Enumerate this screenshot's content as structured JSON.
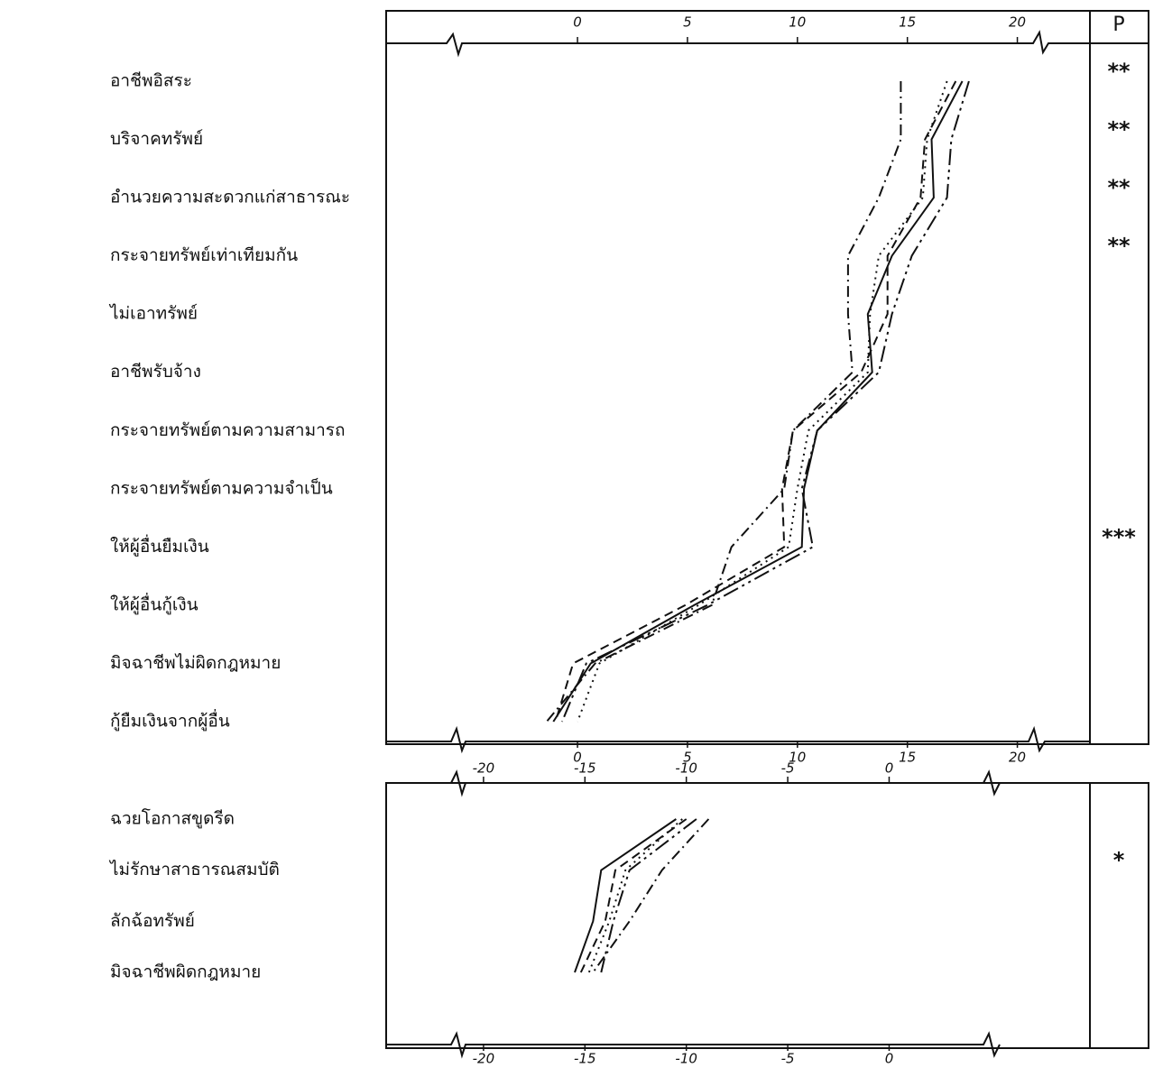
{
  "chart_data": [
    {
      "type": "line",
      "orientation": "horizontal",
      "p_header": "P",
      "categories": [
        "อาชีพอิสระ",
        "บริจาคทรัพย์",
        "อำนวยความสะดวกแก่สาธารณะ",
        "กระจายทรัพย์เท่าเทียมกัน",
        "ไม่เอาทรัพย์",
        "อาชีพรับจ้าง",
        "กระจายทรัพย์ตามความสามารถ",
        "กระจายทรัพย์ตามความจำเป็น",
        "ให้ผู้อื่นยืมเงิน",
        "ให้ผู้อื่นกู้เงิน",
        "มิจฉาชีพไม่ผิดกฎหมาย",
        "กู้ยืมเงินจากผู้อื่น"
      ],
      "significance": [
        "**",
        "**",
        "**",
        "**",
        null,
        null,
        null,
        null,
        "***",
        null,
        null,
        null
      ],
      "series": [
        {
          "color": "#111111",
          "dash": "solid",
          "values": [
            17.5,
            16.1,
            16.2,
            14.3,
            13.2,
            13.4,
            10.9,
            10.3,
            10.2,
            5.3,
            0.6,
            -1.1
          ]
        },
        {
          "color": "#111111",
          "dash": "dashdot",
          "values": [
            14.7,
            14.7,
            13.7,
            12.3,
            12.3,
            12.5,
            9.8,
            9.4,
            7.0,
            6.1,
            0.8,
            -1.4
          ]
        },
        {
          "color": "#111111",
          "dash": "dashed",
          "values": [
            17.2,
            15.8,
            15.6,
            14.1,
            14.1,
            12.9,
            9.8,
            9.3,
            9.4,
            4.9,
            -0.2,
            -1.0
          ]
        },
        {
          "color": "#111111",
          "dash": "dotted",
          "values": [
            16.8,
            15.9,
            15.7,
            13.7,
            13.3,
            13.2,
            10.5,
            10.0,
            9.6,
            5.5,
            1.0,
            0
          ]
        },
        {
          "color": "#111111",
          "dash": "longdashdot",
          "values": [
            17.8,
            17.0,
            16.8,
            15.2,
            14.3,
            13.7,
            10.9,
            10.2,
            10.7,
            5.9,
            0.4,
            -0.7
          ]
        }
      ],
      "xlim": [
        -8.7,
        23.3
      ],
      "xticks": [
        0,
        5,
        10,
        15,
        20
      ]
    },
    {
      "type": "line",
      "orientation": "horizontal",
      "categories": [
        "ฉวยโอกาสขูดรีด",
        "ไม่รักษาสาธารณสมบัติ",
        "ลักฉ้อทรัพย์",
        "มิจฉาชีพผิดกฎหมาย"
      ],
      "significance": [
        null,
        "*",
        null,
        null
      ],
      "series": [
        {
          "color": "#111111",
          "dash": "solid",
          "values": [
            -10.5,
            -14.2,
            -14.6,
            -15.5
          ]
        },
        {
          "color": "#111111",
          "dash": "dashed",
          "values": [
            -10.0,
            -13.5,
            -14.0,
            -15.2
          ]
        },
        {
          "color": "#111111",
          "dash": "dotted",
          "values": [
            -10.2,
            -13.0,
            -13.8,
            -14.8
          ]
        },
        {
          "color": "#111111",
          "dash": "dashdot",
          "values": [
            -8.9,
            -11.2,
            -12.8,
            -14.6
          ]
        },
        {
          "color": "#111111",
          "dash": "longdashdot",
          "values": [
            -9.5,
            -12.8,
            -13.6,
            -14.2
          ]
        }
      ],
      "xlim": [
        -24.8,
        9.9
      ],
      "xticks": [
        -20,
        -15,
        -10,
        -5,
        0
      ]
    }
  ]
}
